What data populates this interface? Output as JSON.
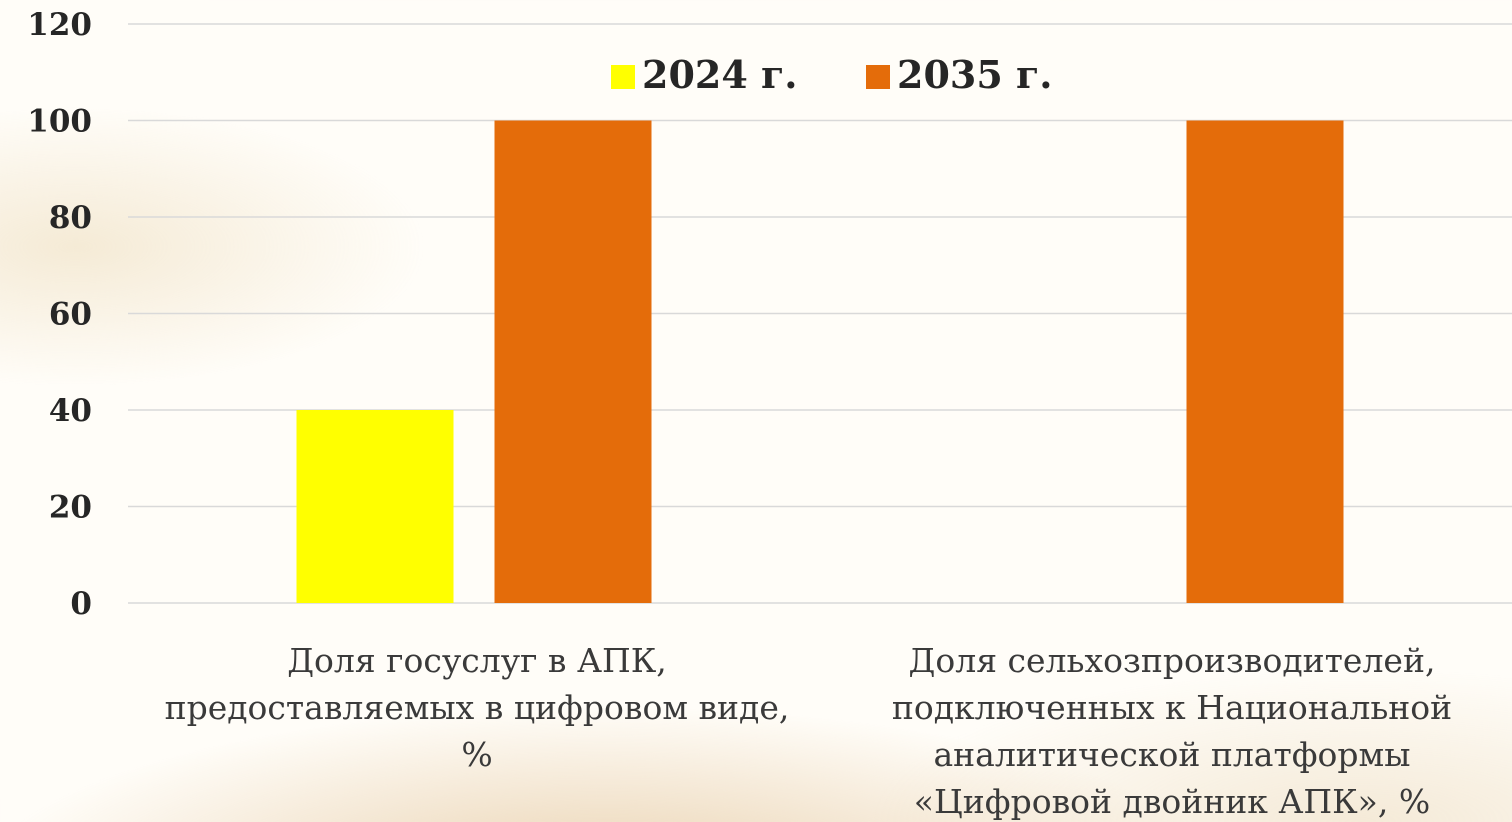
{
  "chart_data": {
    "type": "bar",
    "categories": [
      "Доля госуслуг в АПК, предоставляемых в цифровом виде, %",
      "Доля сельхозпроизводителей, подключенных к Национальной аналитической платформы «Цифровой двойник АПК», %"
    ],
    "series": [
      {
        "name": "2024 г.",
        "color": "#ffff00",
        "values": [
          40,
          null
        ]
      },
      {
        "name": "2035 г.",
        "color": "#e46c0a",
        "values": [
          100,
          100
        ]
      }
    ],
    "ylim": [
      0,
      120
    ],
    "yticks": [
      0,
      20,
      40,
      60,
      80,
      100,
      120
    ],
    "grid": true,
    "legend_position": "top-center",
    "title": "",
    "xlabel": "",
    "ylabel": ""
  }
}
